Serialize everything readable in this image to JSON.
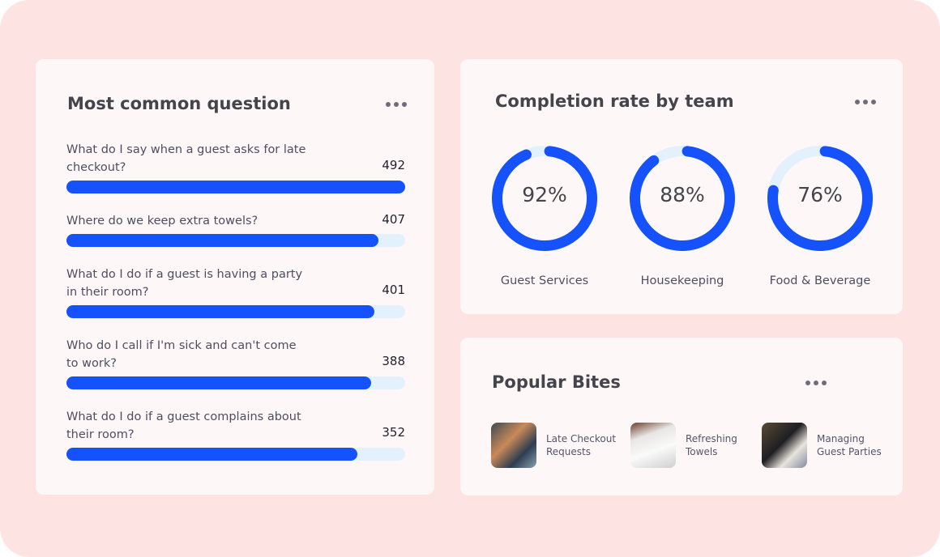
{
  "questions": {
    "title": "Most common question",
    "items": [
      {
        "text": "What do I say when a guest asks for late checkout?",
        "count": "492",
        "fill": 100
      },
      {
        "text": "Where do we keep extra towels?",
        "count": "407",
        "fill": 92
      },
      {
        "text": "What do I do if a guest is having a party in their room?",
        "count": "401",
        "fill": 91
      },
      {
        "text": "Who do I call if I'm sick and can't come to work?",
        "count": "388",
        "fill": 90
      },
      {
        "text": "What do I do if a guest complains about their room?",
        "count": "352",
        "fill": 86
      }
    ]
  },
  "completion": {
    "title": "Completion rate by team",
    "teams": [
      {
        "label": "92%",
        "value": 92,
        "name": "Guest Services"
      },
      {
        "label": "88%",
        "value": 88,
        "name": "Housekeeping"
      },
      {
        "label": "76%",
        "value": 76,
        "name": "Food & Beverage"
      }
    ]
  },
  "bites": {
    "title": "Popular Bites",
    "items": [
      {
        "label": "Late Checkout Requests",
        "image": "receptionist-on-phone"
      },
      {
        "label": "Refreshing Towels",
        "image": "folded-towels"
      },
      {
        "label": "Managing Guest Parties",
        "image": "waiter-talking-to-guest"
      }
    ]
  },
  "colors": {
    "accent": "#1552fb",
    "track": "#e3f1fd",
    "background": "#fee3e3",
    "card": "#fdf8f7"
  }
}
